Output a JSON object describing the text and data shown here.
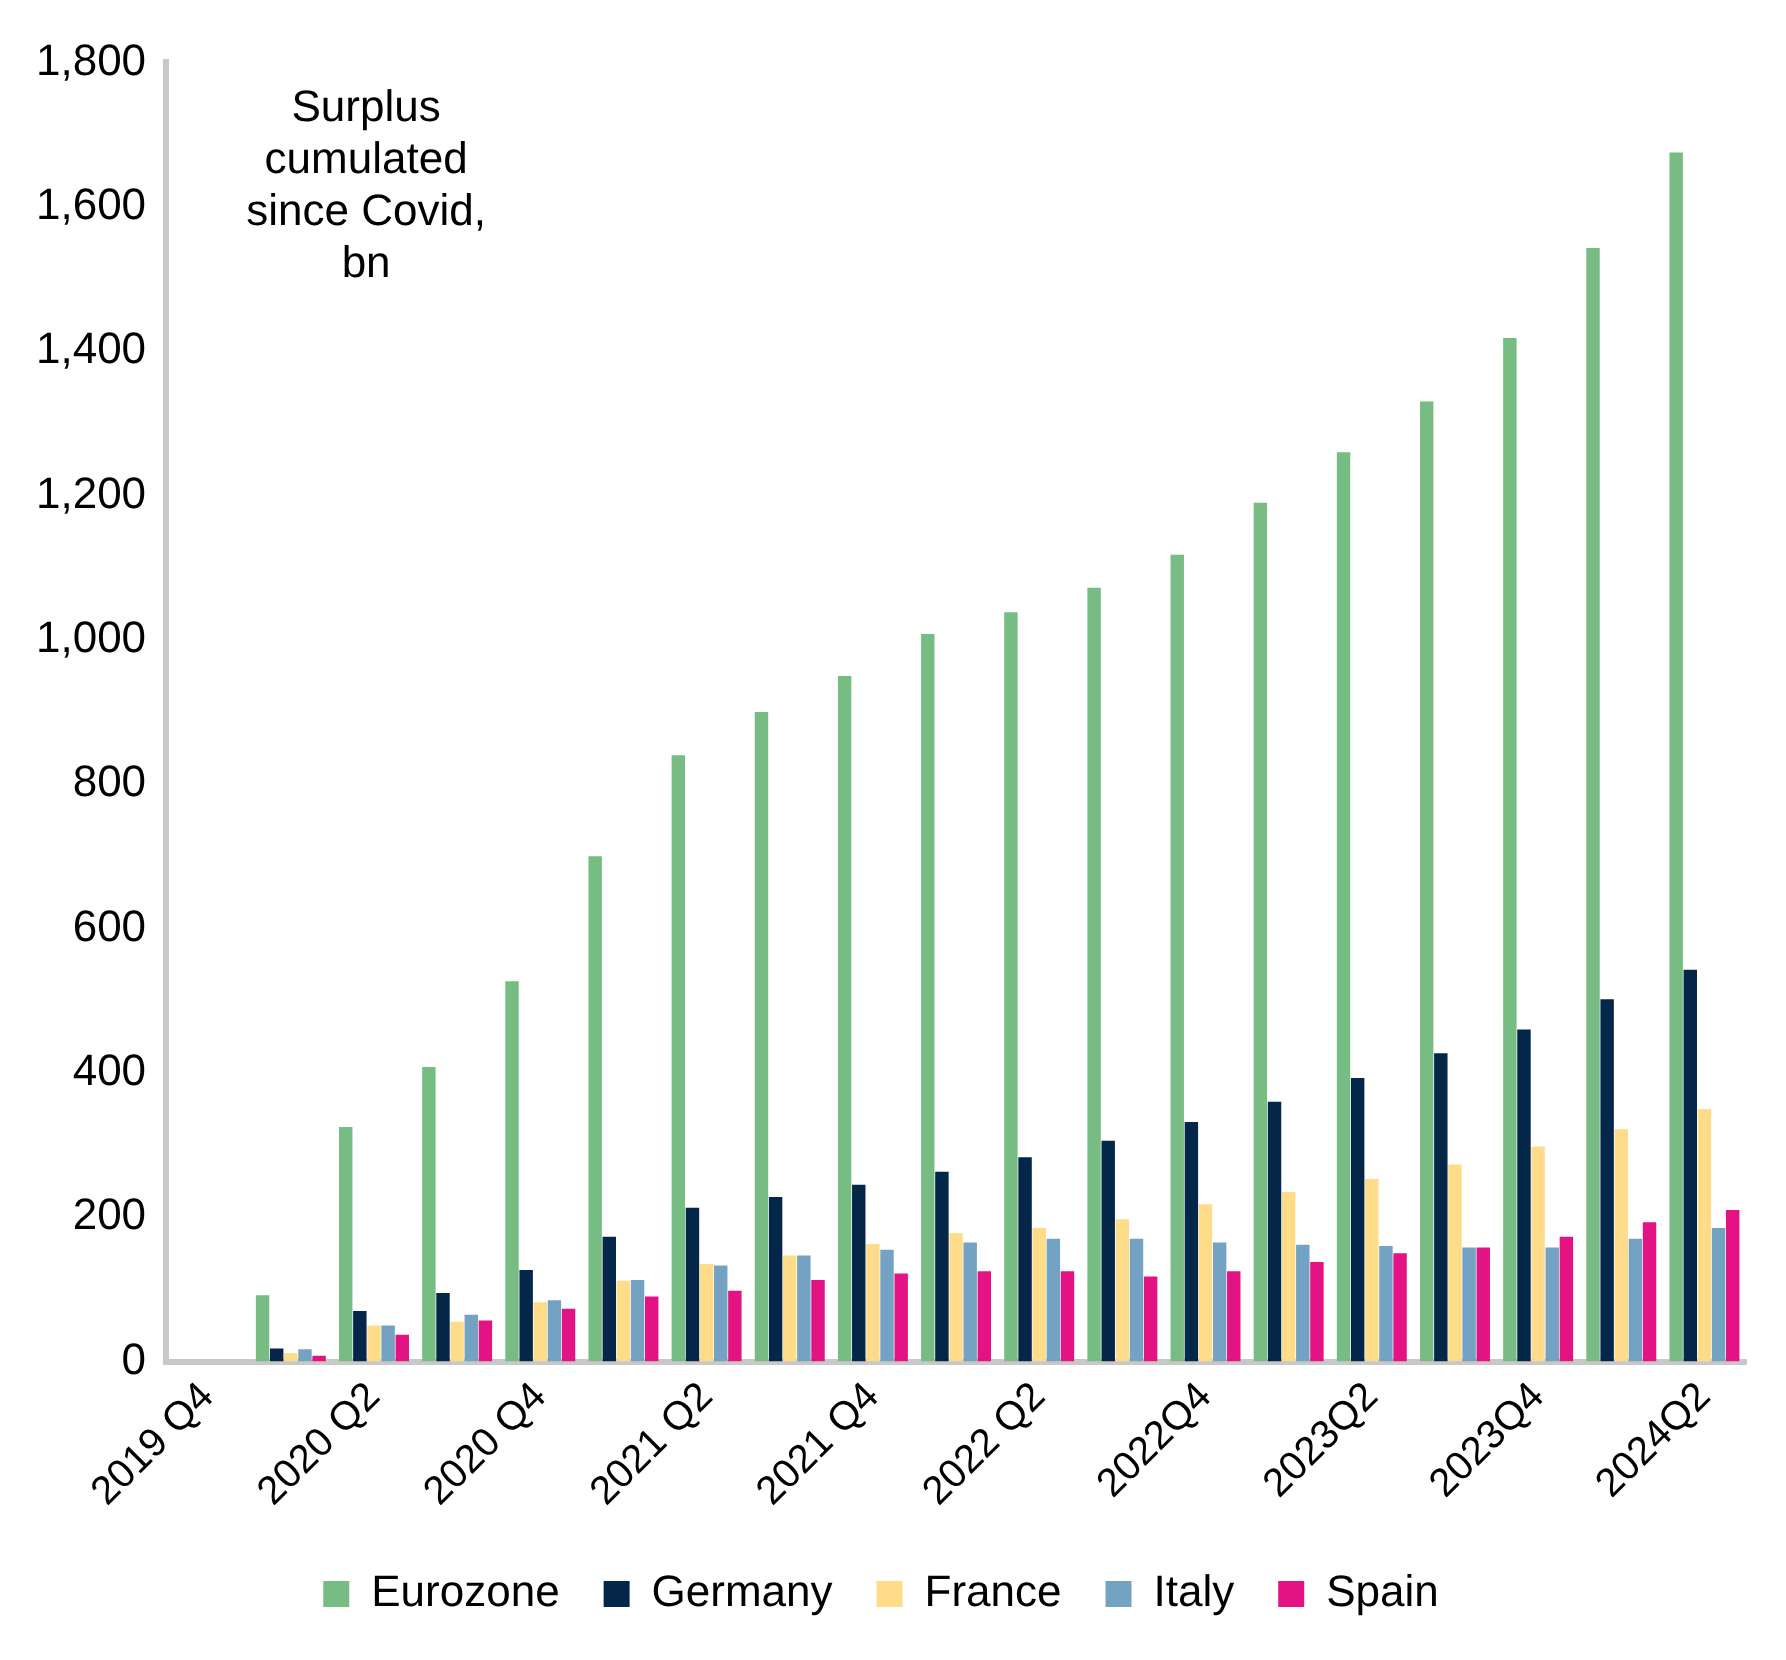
{
  "chart_data": {
    "type": "bar",
    "annotations": [
      "Surplus cumulated since Covid, bn"
    ],
    "categories": [
      "2019 Q4",
      null,
      "2020 Q2",
      null,
      "2020 Q4",
      null,
      "2021 Q2",
      null,
      "2021 Q4",
      null,
      "2022 Q2",
      null,
      "2022Q4",
      null,
      "2023Q2",
      null,
      "2023Q4",
      null,
      "2024Q2"
    ],
    "series": [
      {
        "name": "Eurozone",
        "color": "#77bc82",
        "values": [
          0,
          92,
          325,
          408,
          527,
          700,
          840,
          900,
          950,
          1008,
          1038,
          1072,
          1118,
          1190,
          1260,
          1330,
          1418,
          1543,
          1675
        ]
      },
      {
        "name": "Germany",
        "color": "#042648",
        "values": [
          0,
          18,
          70,
          95,
          127,
          173,
          213,
          228,
          245,
          263,
          283,
          306,
          332,
          360,
          393,
          427,
          460,
          502,
          543
        ]
      },
      {
        "name": "France",
        "color": "#fedc8a",
        "values": [
          0,
          12,
          50,
          55,
          82,
          112,
          135,
          147,
          163,
          178,
          185,
          197,
          218,
          235,
          253,
          273,
          298,
          322,
          350
        ]
      },
      {
        "name": "Italy",
        "color": "#74a2c2",
        "values": [
          0,
          17,
          50,
          65,
          85,
          113,
          133,
          147,
          155,
          165,
          170,
          170,
          165,
          162,
          160,
          158,
          158,
          170,
          185
        ]
      },
      {
        "name": "Spain",
        "color": "#e31383",
        "values": [
          0,
          8,
          37,
          57,
          73,
          90,
          98,
          113,
          122,
          125,
          125,
          118,
          125,
          138,
          150,
          158,
          173,
          193,
          210
        ]
      }
    ],
    "ylim": [
      0,
      1800
    ],
    "yticks": [
      {
        "value": 0,
        "label": "0"
      },
      {
        "value": 200,
        "label": "200"
      },
      {
        "value": 400,
        "label": "400"
      },
      {
        "value": 600,
        "label": "600"
      },
      {
        "value": 800,
        "label": "800"
      },
      {
        "value": 1000,
        "label": "1,000"
      },
      {
        "value": 1200,
        "label": "1,200"
      },
      {
        "value": 1400,
        "label": "1,400"
      },
      {
        "value": 1600,
        "label": "1,600"
      },
      {
        "value": 1800,
        "label": "1,800"
      }
    ],
    "grid": false,
    "legend": "bottom"
  }
}
